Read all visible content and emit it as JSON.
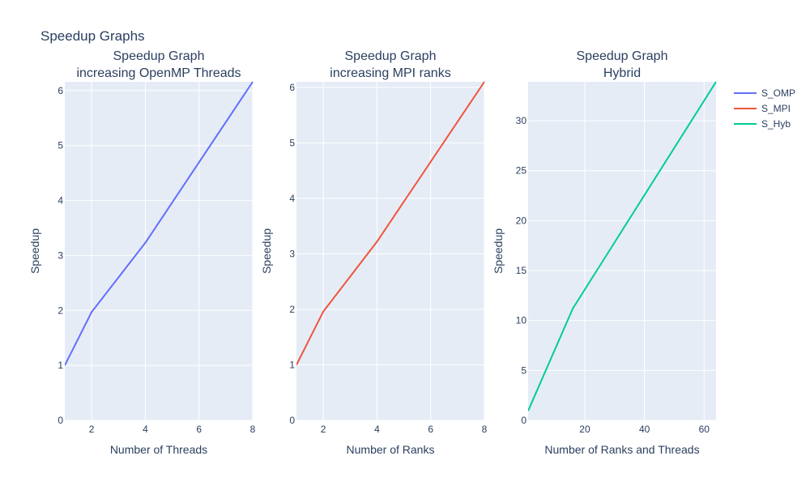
{
  "figure": {
    "title": "Speedup Graphs"
  },
  "chart_data": [
    {
      "type": "line",
      "title_lines": [
        "Speedup Graph",
        "increasing OpenMP Threads"
      ],
      "xlabel": "Number of Threads",
      "ylabel": "Speedup",
      "xlim": [
        1,
        8
      ],
      "ylim": [
        0,
        6.16
      ],
      "xticks": [
        2,
        4,
        6,
        8
      ],
      "yticks": [
        0,
        1,
        2,
        3,
        4,
        5,
        6
      ],
      "grid": true,
      "series": [
        {
          "name": "S_OMP",
          "color": "#636efa",
          "x": [
            1,
            2,
            4,
            8
          ],
          "y": [
            1.0,
            1.97,
            3.23,
            6.16
          ]
        }
      ]
    },
    {
      "type": "line",
      "title_lines": [
        "Speedup Graph",
        "increasing MPI ranks"
      ],
      "xlabel": "Number of Ranks",
      "ylabel": "Speedup",
      "xlim": [
        1,
        8
      ],
      "ylim": [
        0,
        6.1
      ],
      "xticks": [
        2,
        4,
        6,
        8
      ],
      "yticks": [
        0,
        1,
        2,
        3,
        4,
        5,
        6
      ],
      "grid": true,
      "series": [
        {
          "name": "S_MPI",
          "color": "#ef553b",
          "x": [
            1,
            2,
            4,
            8
          ],
          "y": [
            1.0,
            1.96,
            3.22,
            6.1
          ]
        }
      ]
    },
    {
      "type": "line",
      "title_lines": [
        "Speedup Graph",
        "Hybrid"
      ],
      "xlabel": "Number of Ranks and Threads",
      "ylabel": "Speedup",
      "xlim": [
        1,
        64
      ],
      "ylim": [
        0,
        33.9
      ],
      "xticks": [
        20,
        40,
        60
      ],
      "yticks": [
        0,
        5,
        10,
        15,
        20,
        25,
        30
      ],
      "grid": true,
      "series": [
        {
          "name": "S_Hyb",
          "color": "#00cc96",
          "x": [
            1,
            16,
            64
          ],
          "y": [
            0.95,
            11.2,
            33.9
          ]
        }
      ]
    }
  ],
  "legend": {
    "placement": "top-right",
    "items": [
      {
        "name": "S_OMP",
        "color": "#636efa"
      },
      {
        "name": "S_MPI",
        "color": "#ef553b"
      },
      {
        "name": "S_Hyb",
        "color": "#00cc96"
      }
    ]
  },
  "colors": {
    "plot_bg": "#e5ecf6",
    "grid": "#ffffff",
    "text": "#2a3f5f"
  }
}
